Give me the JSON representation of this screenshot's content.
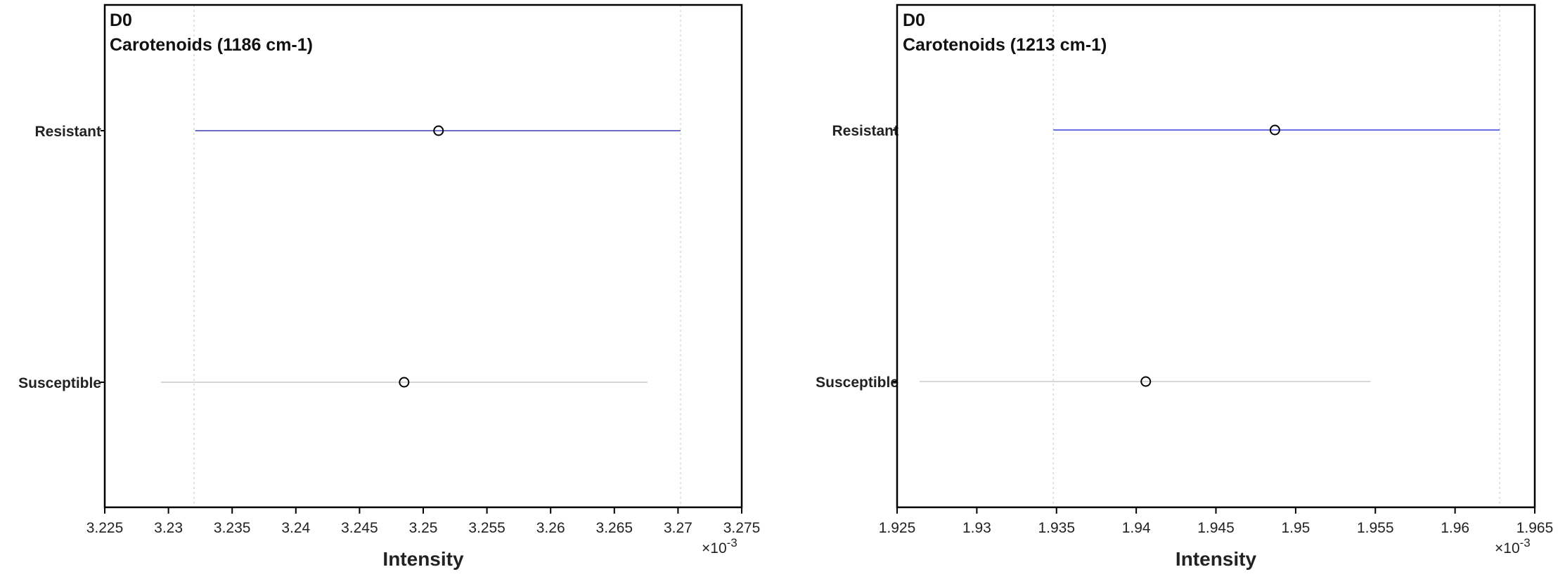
{
  "chart_data": [
    {
      "type": "interval",
      "title_lines": [
        "D0",
        "Carotenoids (1186 cm-1)"
      ],
      "xlabel": "Intensity",
      "x_exponent_label": "×10",
      "x_exponent_value": "-3",
      "xlim": [
        3.225,
        3.275
      ],
      "xticks": [
        "3.225",
        "3.23",
        "3.235",
        "3.24",
        "3.245",
        "3.25",
        "3.255",
        "3.26",
        "3.265",
        "3.27",
        "3.275"
      ],
      "gridlines_at": [
        3.232,
        3.2702
      ],
      "grid": true,
      "categories": [
        "Resistant",
        "Susceptible"
      ],
      "intervals": [
        {
          "category": "Resistant",
          "mean": 3.2512,
          "low": 3.2321,
          "high": 3.2702,
          "color": "#3b3bb0"
        },
        {
          "category": "Susceptible",
          "mean": 3.2485,
          "low": 3.2294,
          "high": 3.2676,
          "color": "#cccccc"
        }
      ]
    },
    {
      "type": "interval",
      "title_lines": [
        "D0",
        "Carotenoids (1213 cm-1)"
      ],
      "xlabel": "Intensity",
      "x_exponent_label": "×10",
      "x_exponent_value": "-3",
      "xlim": [
        1.925,
        1.965
      ],
      "xticks": [
        "1.925",
        "1.93",
        "1.935",
        "1.94",
        "1.945",
        "1.95",
        "1.955",
        "1.96",
        "1.965"
      ],
      "gridlines_at": [
        1.9348,
        1.9628
      ],
      "grid": true,
      "categories": [
        "Resistant",
        "Susceptible"
      ],
      "intervals": [
        {
          "category": "Resistant",
          "mean": 1.9487,
          "low": 1.9348,
          "high": 1.9628,
          "color": "#3b3bdd"
        },
        {
          "category": "Susceptible",
          "mean": 1.9406,
          "low": 1.9264,
          "high": 1.9547,
          "color": "#cccccc"
        }
      ]
    }
  ]
}
